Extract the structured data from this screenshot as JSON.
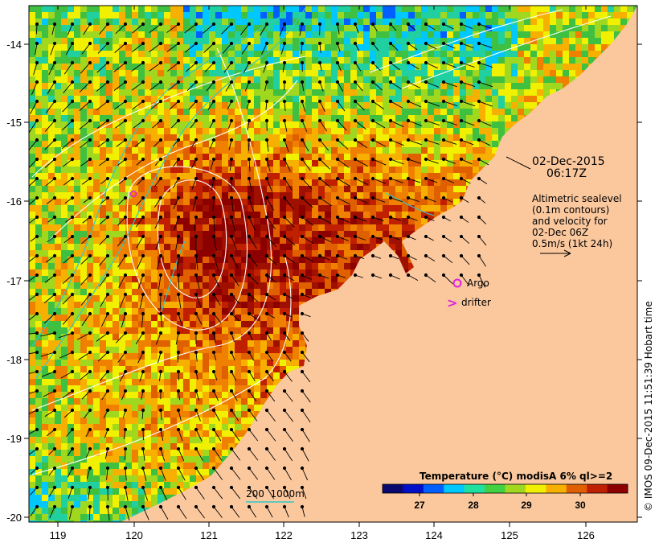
{
  "map": {
    "timestamp_date": "02-Dec-2015",
    "timestamp_time": "06:17Z",
    "sealevel_note": [
      "Altimetric sealevel",
      "(0.1m contours)",
      "and velocity for",
      "02-Dec 06Z",
      "0.5m/s (1kt 24h)"
    ],
    "legend": {
      "argo_label": "Argo",
      "drifter_label": "drifter",
      "drifter_symbol": ">",
      "isobath_label": "200  1000m"
    },
    "colorbar": {
      "title": "Temperature (°C) modisA 6% ql>=2",
      "ticks": [
        "27",
        "28",
        "29",
        "30"
      ],
      "colors": [
        "#08086e",
        "#0010c8",
        "#0060ff",
        "#00c8ff",
        "#20e0a0",
        "#40d040",
        "#a0d820",
        "#f0f000",
        "#f8b000",
        "#e06000",
        "#c02000",
        "#8c0000"
      ]
    },
    "credit": "© IMOS 09-Dec-2015 11:51:39 Hobart time",
    "x_ticks": [
      "119",
      "120",
      "121",
      "122",
      "123",
      "124",
      "125",
      "126"
    ],
    "y_ticks": [
      "-14",
      "-15",
      "-16",
      "-17",
      "-18",
      "-19",
      "-20"
    ],
    "colors": {
      "land": "#fbc89e",
      "isobath": "#30c8c8",
      "contour": "#ffffff",
      "argo": "#e020e0",
      "drifter": "#e020e0"
    }
  }
}
